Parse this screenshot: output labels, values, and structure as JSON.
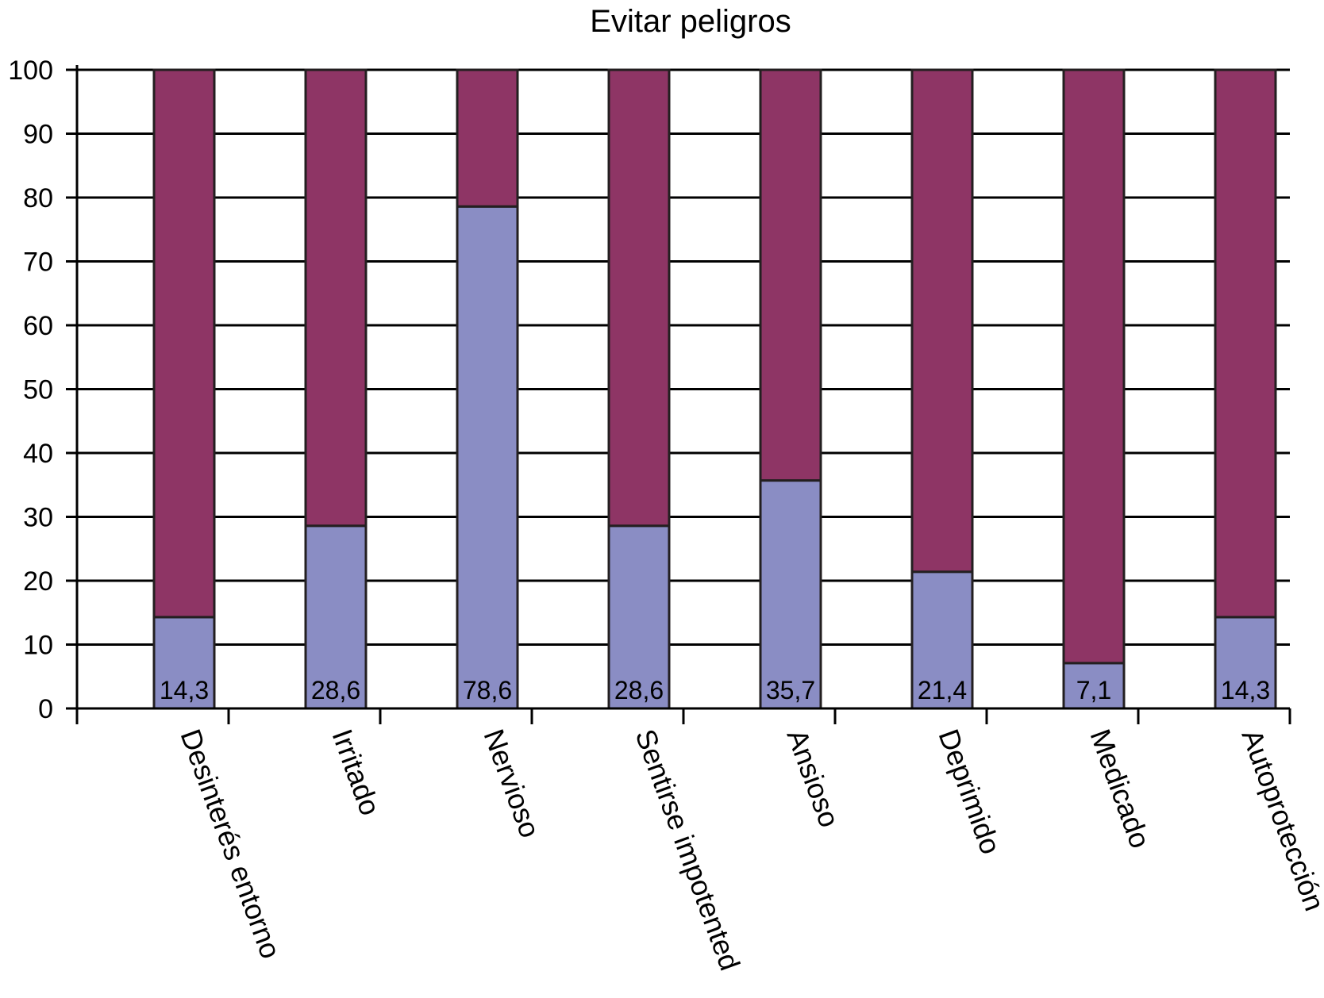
{
  "chart_data": {
    "type": "bar",
    "stacked": true,
    "title": "Evitar peligros",
    "xlabel": "",
    "ylabel": "",
    "ylim": [
      0,
      100
    ],
    "yticks": [
      0,
      10,
      20,
      30,
      40,
      50,
      60,
      70,
      80,
      90,
      100
    ],
    "grid": true,
    "legend": "none",
    "categories": [
      "Desinterés entorno",
      "Irritado",
      "Nervioso",
      "Sentirse impotented",
      "Ansioso",
      "Deprimido",
      "Medicado",
      "Autoprotección"
    ],
    "series": [
      {
        "color": "#8a8dc4",
        "values": [
          14.3,
          28.6,
          78.6,
          28.6,
          35.7,
          21.4,
          7.1,
          14.3
        ],
        "labels": [
          "14,3",
          "28,6",
          "78,6",
          "28,6",
          "35,7",
          "21,4",
          "7,1",
          "14,3"
        ]
      },
      {
        "color": "#8e3565",
        "values": [
          85.7,
          71.4,
          21.4,
          71.4,
          64.3,
          78.6,
          92.9,
          85.7
        ]
      }
    ]
  }
}
